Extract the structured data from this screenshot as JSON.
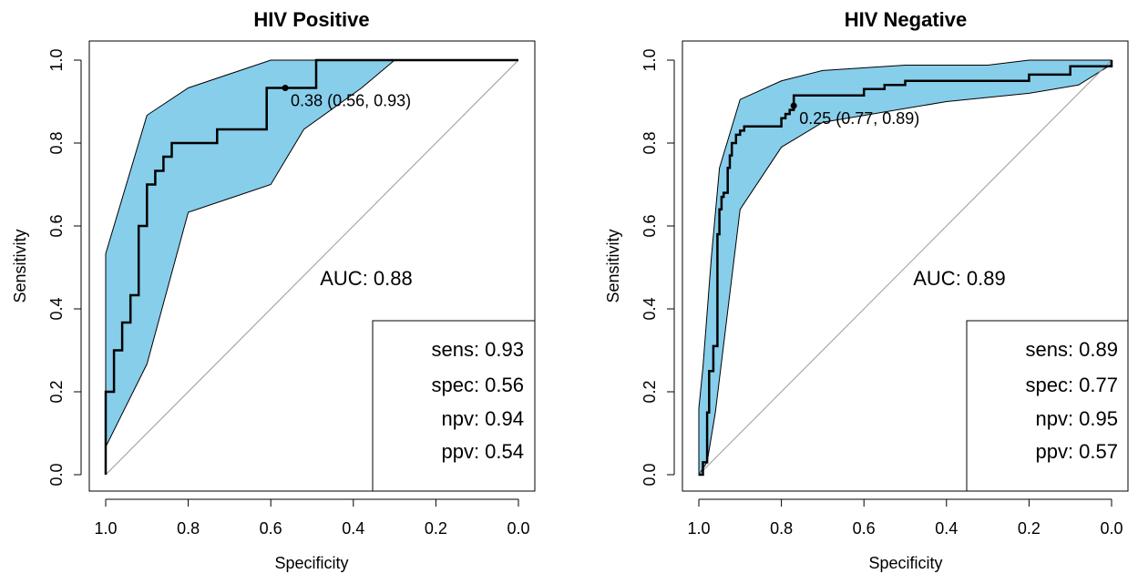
{
  "chart_data": [
    {
      "type": "line",
      "title": "HIV Positive",
      "xlabel": "Specificity",
      "ylabel": "Sensitivity",
      "xlim": [
        1.0,
        0.0
      ],
      "ylim": [
        0.0,
        1.0
      ],
      "x_ticks": [
        "1.0",
        "0.8",
        "0.6",
        "0.4",
        "0.2",
        "0.0"
      ],
      "y_ticks": [
        "0.0",
        "0.2",
        "0.4",
        "0.6",
        "0.8",
        "1.0"
      ],
      "auc_label": "AUC: 0.88",
      "threshold_label": "0.38 (0.56, 0.93)",
      "best_point": {
        "specificity": 0.565,
        "sensitivity": 0.933
      },
      "stats": [
        "sens: 0.93",
        "spec: 0.56",
        "npv: 0.94",
        "ppv: 0.54"
      ],
      "ci_band_color": "#87CEEB",
      "roc_curve": {
        "specificity": [
          1.0,
          1.0,
          0.98,
          0.98,
          0.96,
          0.96,
          0.94,
          0.94,
          0.92,
          0.92,
          0.9,
          0.9,
          0.88,
          0.88,
          0.86,
          0.86,
          0.84,
          0.84,
          0.73,
          0.73,
          0.61,
          0.61,
          0.49,
          0.49,
          0.0
        ],
        "sensitivity": [
          0.0,
          0.2,
          0.2,
          0.3,
          0.3,
          0.367,
          0.367,
          0.433,
          0.433,
          0.6,
          0.6,
          0.7,
          0.7,
          0.733,
          0.733,
          0.767,
          0.767,
          0.8,
          0.8,
          0.833,
          0.833,
          0.933,
          0.933,
          1.0,
          1.0
        ]
      },
      "ci_upper": {
        "specificity": [
          1.0,
          0.9,
          0.8,
          0.6,
          0.3,
          0.0
        ],
        "sensitivity": [
          0.533,
          0.867,
          0.933,
          1.0,
          1.0,
          1.0
        ]
      },
      "ci_lower": {
        "specificity": [
          1.0,
          0.9,
          0.8,
          0.6,
          0.52,
          0.38,
          0.3
        ],
        "sensitivity": [
          0.067,
          0.267,
          0.633,
          0.7,
          0.833,
          0.933,
          1.0
        ]
      }
    },
    {
      "type": "line",
      "title": "HIV Negative",
      "xlabel": "Specificity",
      "ylabel": "Sensitivity",
      "xlim": [
        1.0,
        0.0
      ],
      "ylim": [
        0.0,
        1.0
      ],
      "x_ticks": [
        "1.0",
        "0.8",
        "0.6",
        "0.4",
        "0.2",
        "0.0"
      ],
      "y_ticks": [
        "0.0",
        "0.2",
        "0.4",
        "0.6",
        "0.8",
        "1.0"
      ],
      "auc_label": "AUC: 0.89",
      "threshold_label": "0.25 (0.77, 0.89)",
      "best_point": {
        "specificity": 0.77,
        "sensitivity": 0.89
      },
      "stats": [
        "sens: 0.89",
        "spec: 0.77",
        "npv: 0.95",
        "ppv: 0.57"
      ],
      "ci_band_color": "#87CEEB",
      "roc_curve": {
        "specificity": [
          1.0,
          0.99,
          0.99,
          0.98,
          0.98,
          0.975,
          0.975,
          0.965,
          0.965,
          0.955,
          0.955,
          0.95,
          0.95,
          0.945,
          0.945,
          0.94,
          0.94,
          0.93,
          0.93,
          0.925,
          0.925,
          0.92,
          0.92,
          0.91,
          0.91,
          0.9,
          0.9,
          0.89,
          0.89,
          0.8,
          0.8,
          0.79,
          0.79,
          0.78,
          0.78,
          0.77,
          0.77,
          0.6,
          0.6,
          0.55,
          0.55,
          0.5,
          0.5,
          0.2,
          0.2,
          0.1,
          0.1,
          0.0,
          0.0
        ],
        "sensitivity": [
          0.0,
          0.0,
          0.03,
          0.03,
          0.15,
          0.15,
          0.25,
          0.25,
          0.31,
          0.31,
          0.58,
          0.58,
          0.64,
          0.64,
          0.67,
          0.67,
          0.68,
          0.68,
          0.74,
          0.74,
          0.77,
          0.77,
          0.8,
          0.8,
          0.82,
          0.82,
          0.83,
          0.83,
          0.84,
          0.84,
          0.86,
          0.86,
          0.87,
          0.87,
          0.88,
          0.88,
          0.915,
          0.915,
          0.93,
          0.93,
          0.94,
          0.94,
          0.95,
          0.95,
          0.965,
          0.965,
          0.985,
          0.985,
          1.0
        ]
      },
      "ci_upper": {
        "specificity": [
          1.0,
          0.99,
          0.97,
          0.95,
          0.9,
          0.8,
          0.7,
          0.5,
          0.3,
          0.2,
          0.0
        ],
        "sensitivity": [
          0.16,
          0.26,
          0.52,
          0.74,
          0.905,
          0.95,
          0.975,
          0.988,
          0.988,
          1.0,
          1.0
        ]
      },
      "ci_lower": {
        "specificity": [
          1.0,
          0.98,
          0.96,
          0.9,
          0.8,
          0.7,
          0.4,
          0.2,
          0.08,
          0.0
        ],
        "sensitivity": [
          0.0,
          0.03,
          0.15,
          0.64,
          0.79,
          0.85,
          0.9,
          0.92,
          0.94,
          0.99
        ]
      }
    }
  ]
}
